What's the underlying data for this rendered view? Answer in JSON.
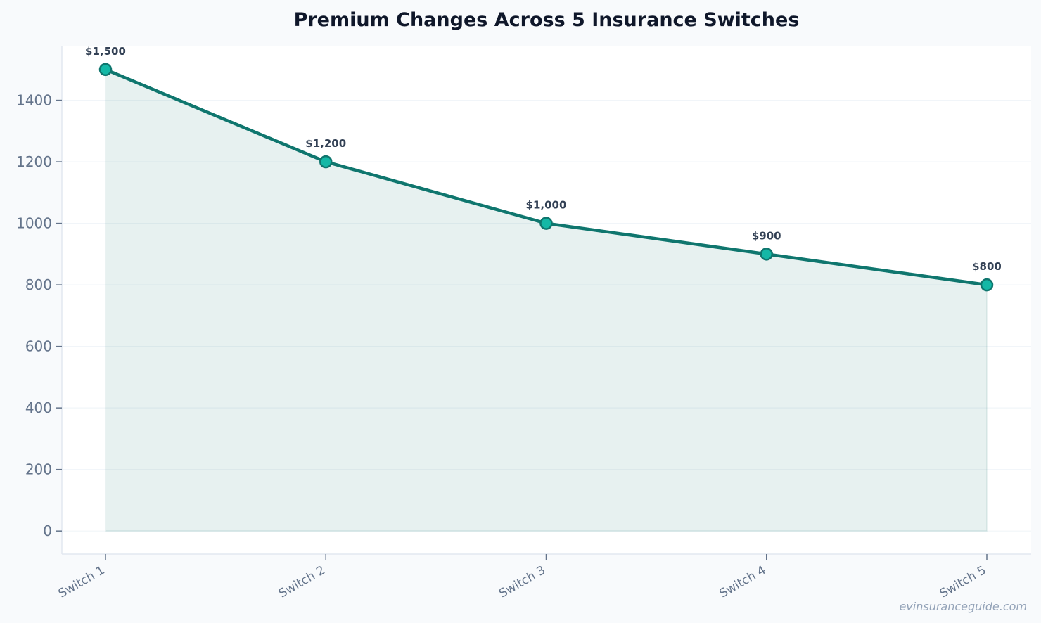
{
  "chart_data": {
    "type": "line",
    "title": "Premium Changes Across 5 Insurance Switches",
    "xlabel": "",
    "ylabel": "",
    "categories": [
      "Switch 1",
      "Switch 2",
      "Switch 3",
      "Switch 4",
      "Switch 5"
    ],
    "values": [
      1500,
      1200,
      1000,
      900,
      800
    ],
    "data_labels": [
      "$1,500",
      "$1,200",
      "$1,000",
      "$900",
      "$800"
    ],
    "y_ticks": [
      0,
      200,
      400,
      600,
      800,
      1000,
      1200,
      1400
    ],
    "ylim": [
      -75,
      1575
    ],
    "grid": true,
    "area_fill": true,
    "colors": {
      "line": "#0f766e",
      "marker_fill": "#14b8a6",
      "area": "#0f766e",
      "background": "#f8fafc",
      "plot_background": "#ffffff"
    }
  },
  "watermark": "evinsuranceguide.com"
}
